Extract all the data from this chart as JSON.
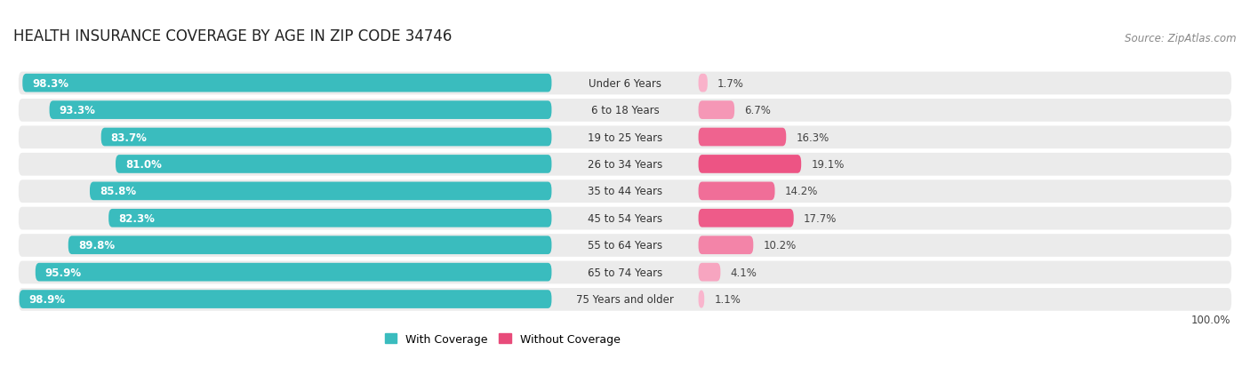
{
  "title": "HEALTH INSURANCE COVERAGE BY AGE IN ZIP CODE 34746",
  "source": "Source: ZipAtlas.com",
  "categories": [
    "Under 6 Years",
    "6 to 18 Years",
    "19 to 25 Years",
    "26 to 34 Years",
    "35 to 44 Years",
    "45 to 54 Years",
    "55 to 64 Years",
    "65 to 74 Years",
    "75 Years and older"
  ],
  "with_coverage": [
    98.3,
    93.3,
    83.7,
    81.0,
    85.8,
    82.3,
    89.8,
    95.9,
    98.9
  ],
  "without_coverage": [
    1.7,
    6.7,
    16.3,
    19.1,
    14.2,
    17.7,
    10.2,
    4.1,
    1.1
  ],
  "color_with": "#3abcbe",
  "color_without_values": [
    1.7,
    6.7,
    16.3,
    19.1,
    14.2,
    17.7,
    10.2,
    4.1,
    1.1
  ],
  "row_bg_color": "#ebebeb",
  "row_alt_color": "#f5f5f5",
  "title_fontsize": 12,
  "source_fontsize": 8.5,
  "label_fontsize": 8.5,
  "value_fontsize": 8.5,
  "legend_fontsize": 9,
  "bottom_label": "100.0%",
  "bar_height": 0.68
}
